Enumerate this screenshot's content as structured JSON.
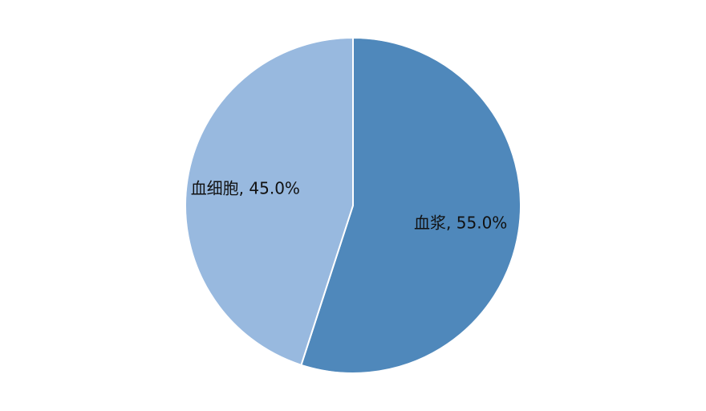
{
  "chart_data": {
    "type": "pie",
    "start_angle_deg": 0,
    "direction": "clockwise",
    "slices": [
      {
        "label": "血浆",
        "value": 55.0,
        "display": "血浆, 55.0%",
        "color": "#4f88bb"
      },
      {
        "label": "血细胞",
        "value": 45.0,
        "display": "血细胞, 45.0%",
        "color": "#98b9df"
      }
    ]
  }
}
